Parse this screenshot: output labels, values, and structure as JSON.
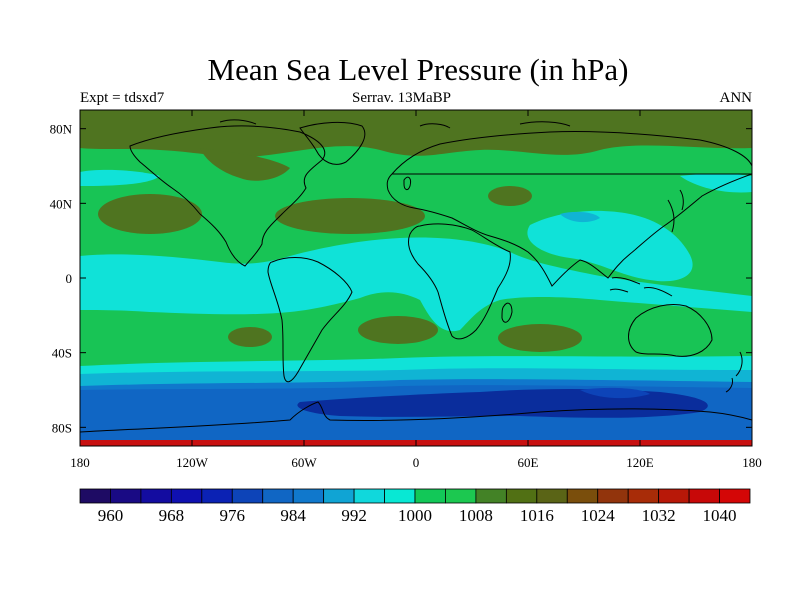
{
  "title": "Mean Sea Level Pressure (in hPa)",
  "subtitle_left": "Expt = tdsxd7",
  "subtitle_center": "Serrav.  13MaBP",
  "subtitle_right": "ANN",
  "lat_ticks": [
    "80N",
    "40N",
    "0",
    "40S",
    "80S"
  ],
  "lon_ticks": [
    "180",
    "120W",
    "60W",
    "0",
    "60E",
    "120E",
    "180"
  ],
  "colorbar": {
    "labels": [
      "960",
      "968",
      "976",
      "984",
      "992",
      "1000",
      "1008",
      "1016",
      "1024",
      "1032",
      "1040"
    ],
    "colors": [
      "#1e0b64",
      "#190a84",
      "#130ca0",
      "#0f10b0",
      "#0b22b4",
      "#0d44b8",
      "#1066c4",
      "#1078cc",
      "#10a4d4",
      "#10d8dc",
      "#08e8d4",
      "#12c858",
      "#1cc850",
      "#438226",
      "#517014",
      "#5a6416",
      "#7a4e0c",
      "#92340c",
      "#a82c08",
      "#b81808",
      "#c80808",
      "#d40606"
    ]
  },
  "chart_data": {
    "type": "map",
    "title": "Mean Sea Level Pressure (in hPa)",
    "projection": "cylindrical equidistant",
    "x_range": [
      -180,
      180
    ],
    "y_range": [
      -90,
      90
    ],
    "xlabel": "",
    "ylabel": "",
    "x_ticks": [
      -180,
      -120,
      -60,
      0,
      60,
      120,
      180
    ],
    "y_ticks": [
      80,
      40,
      0,
      -40,
      -80
    ],
    "colorbar_levels": [
      960,
      968,
      976,
      984,
      992,
      1000,
      1008,
      1016,
      1024,
      1032,
      1040
    ],
    "units": "hPa",
    "colors": {
      "low_deep": "#0a2d9c",
      "low": "#1066c4",
      "mid_low": "#10b4d4",
      "cyan": "#10e2d8",
      "green": "#18c455",
      "olive": "#4f7420",
      "high_red": "#c81010"
    }
  }
}
